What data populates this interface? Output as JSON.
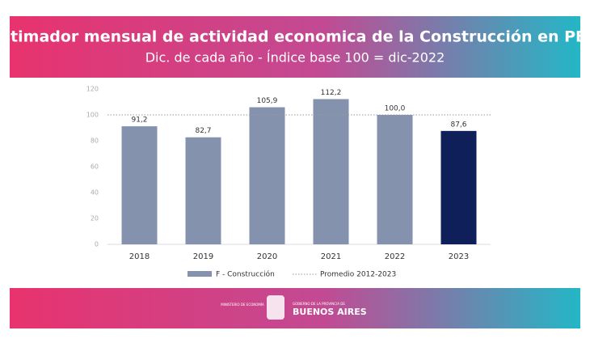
{
  "chart_data": {
    "type": "bar",
    "title": "Estimador mensual de actividad economica de la Construcción en PBA",
    "subtitle": "Dic. de cada año - Índice base 100 = dic-2022",
    "categories": [
      "2018",
      "2019",
      "2020",
      "2021",
      "2022",
      "2023"
    ],
    "series": [
      {
        "name": "F - Construcción",
        "color": "#8592ad",
        "colors": [
          "#8592ad",
          "#8592ad",
          "#8592ad",
          "#8592ad",
          "#8592ad",
          "#0e1f5a"
        ],
        "values": [
          91.2,
          82.7,
          105.9,
          112.2,
          100.0,
          87.6
        ],
        "value_labels": [
          "91,2",
          "82,7",
          "105,9",
          "112,2",
          "100,0",
          "87,6"
        ]
      }
    ],
    "reference_line": {
      "name": "Promedio 2012-2023",
      "value": 100,
      "color": "#999999"
    },
    "ylim": [
      0,
      120
    ],
    "yticks": [
      0,
      20,
      40,
      60,
      80,
      100,
      120
    ],
    "grid": false
  },
  "footer": {
    "ministry": "MINISTERIO DE ECONOMÍA",
    "government": "GOBIERNO DE LA PROVINCIA DE",
    "province": "BUENOS AIRES"
  }
}
